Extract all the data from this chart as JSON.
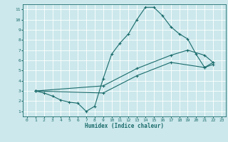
{
  "xlabel": "Humidex (Indice chaleur)",
  "bg_color": "#cce8ec",
  "line_color": "#1a6b6b",
  "grid_color": "#b0d8dc",
  "xlim": [
    -0.5,
    23.5
  ],
  "ylim": [
    0.5,
    11.5
  ],
  "xticks": [
    0,
    1,
    2,
    3,
    4,
    5,
    6,
    7,
    8,
    9,
    10,
    11,
    12,
    13,
    14,
    15,
    16,
    17,
    18,
    19,
    20,
    21,
    22,
    23
  ],
  "yticks": [
    1,
    2,
    3,
    4,
    5,
    6,
    7,
    8,
    9,
    10,
    11
  ],
  "line1": {
    "x": [
      1,
      2,
      3,
      4,
      5,
      6,
      7,
      8,
      9,
      10,
      11,
      12,
      13,
      14,
      15,
      16,
      17,
      18,
      19,
      20,
      21,
      22
    ],
    "y": [
      3.0,
      2.8,
      2.5,
      2.1,
      1.9,
      1.8,
      1.0,
      1.5,
      4.2,
      6.6,
      7.7,
      8.6,
      10.0,
      11.2,
      11.2,
      10.4,
      9.3,
      8.6,
      8.1,
      6.6,
      5.3,
      5.8
    ]
  },
  "line2": {
    "x": [
      1,
      9,
      13,
      17,
      19,
      21,
      22
    ],
    "y": [
      3.0,
      3.5,
      5.2,
      6.5,
      7.0,
      6.5,
      5.8
    ]
  },
  "line3": {
    "x": [
      1,
      9,
      13,
      17,
      21,
      22
    ],
    "y": [
      3.0,
      2.8,
      4.5,
      5.8,
      5.3,
      5.6
    ]
  }
}
